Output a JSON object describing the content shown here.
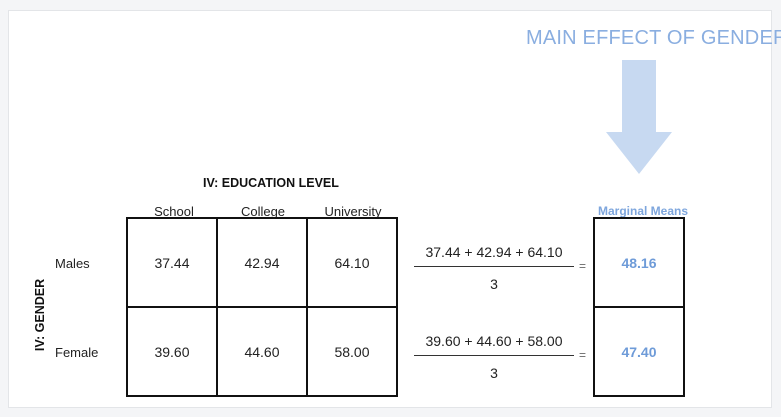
{
  "title": "MAIN EFFECT OF GENDER",
  "iv_education_label": "IV: EDUCATION LEVEL",
  "iv_gender_label": "IV: GENDER",
  "columns": [
    "School",
    "College",
    "University"
  ],
  "rows": [
    {
      "label": "Males",
      "values": [
        "37.44",
        "42.94",
        "64.10"
      ],
      "numerator": "37.44 + 42.94 + 64.10",
      "denominator": "3",
      "equals": "=",
      "mean": "48.16"
    },
    {
      "label": "Female",
      "values": [
        "39.60",
        "44.60",
        "58.00"
      ],
      "numerator": "39.60 + 44.60 + 58.00",
      "denominator": "3",
      "equals": "=",
      "mean": "47.40"
    }
  ],
  "marginal_means_label": "Marginal Means",
  "colors": {
    "accent": "#7ea6dd",
    "arrow": "#c7d9f1",
    "border": "#111111"
  },
  "icons": {
    "arrow": "down-arrow-icon"
  }
}
